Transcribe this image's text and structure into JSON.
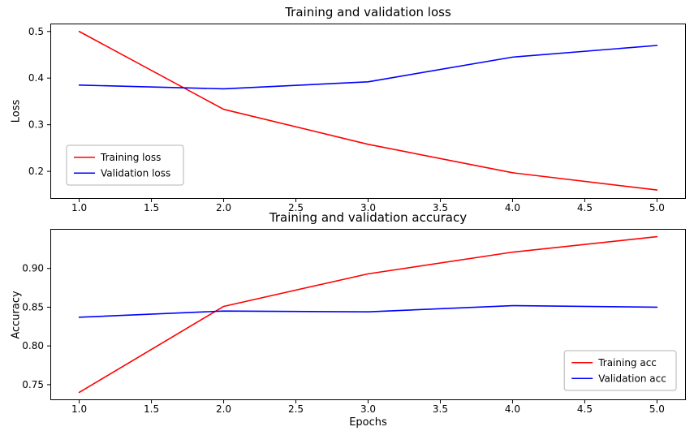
{
  "figure": {
    "background": "#ffffff"
  },
  "chart_data": [
    {
      "type": "line",
      "name": "loss",
      "title": "Training and validation loss",
      "xlabel": "",
      "ylabel": "Loss",
      "x": [
        1,
        2,
        3,
        4,
        5
      ],
      "series": [
        {
          "name": "Training loss",
          "color": "#ff0000",
          "values": [
            0.5,
            0.333,
            0.258,
            0.197,
            0.16
          ]
        },
        {
          "name": "Validation loss",
          "color": "#0000ff",
          "values": [
            0.385,
            0.377,
            0.392,
            0.445,
            0.47
          ]
        }
      ],
      "xlim": [
        0.8,
        5.2
      ],
      "ylim": [
        0.141,
        0.517
      ],
      "xticks": [
        1.0,
        1.5,
        2.0,
        2.5,
        3.0,
        3.5,
        4.0,
        4.5,
        5.0
      ],
      "xtick_labels": [
        "1.0",
        "1.5",
        "2.0",
        "2.5",
        "3.0",
        "3.5",
        "4.0",
        "4.5",
        "5.0"
      ],
      "yticks": [
        0.2,
        0.3,
        0.4,
        0.5
      ],
      "ytick_labels": [
        "0.2",
        "0.3",
        "0.4",
        "0.5"
      ],
      "legend_loc": "lower left",
      "grid": false
    },
    {
      "type": "line",
      "name": "accuracy",
      "title": "Training and validation accuracy",
      "xlabel": "Epochs",
      "ylabel": "Accuracy",
      "x": [
        1,
        2,
        3,
        4,
        5
      ],
      "series": [
        {
          "name": "Training acc",
          "color": "#ff0000",
          "values": [
            0.74,
            0.851,
            0.893,
            0.921,
            0.941
          ]
        },
        {
          "name": "Validation acc",
          "color": "#0000ff",
          "values": [
            0.837,
            0.845,
            0.844,
            0.852,
            0.85
          ]
        }
      ],
      "xlim": [
        0.8,
        5.2
      ],
      "ylim": [
        0.73,
        0.951
      ],
      "xticks": [
        1.0,
        1.5,
        2.0,
        2.5,
        3.0,
        3.5,
        4.0,
        4.5,
        5.0
      ],
      "xtick_labels": [
        "1.0",
        "1.5",
        "2.0",
        "2.5",
        "3.0",
        "3.5",
        "4.0",
        "4.5",
        "5.0"
      ],
      "yticks": [
        0.75,
        0.8,
        0.85,
        0.9
      ],
      "ytick_labels": [
        "0.75",
        "0.80",
        "0.85",
        "0.90"
      ],
      "legend_loc": "lower right",
      "grid": false
    }
  ]
}
